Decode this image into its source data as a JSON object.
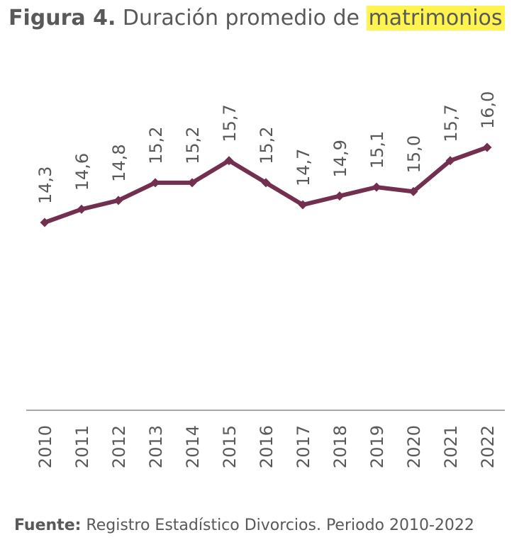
{
  "title": {
    "label": "Figura 4.",
    "text": "Duración promedio de",
    "highlight": "matrimonios"
  },
  "source": {
    "label": "Fuente:",
    "text": "Registro Estadístico Divorcios. Periodo 2010-2022"
  },
  "colors": {
    "line": "#722f4f",
    "text": "#595959",
    "axis": "#8c8c8c",
    "highlight": "#fff44f"
  },
  "chart_data": {
    "type": "line",
    "title": "Figura 4. Duración promedio de matrimonios",
    "xlabel": "",
    "ylabel": "",
    "categories": [
      "2010",
      "2011",
      "2012",
      "2013",
      "2014",
      "2015",
      "2016",
      "2017",
      "2018",
      "2019",
      "2020",
      "2021",
      "2022"
    ],
    "series": [
      {
        "values": [
          14.3,
          14.6,
          14.8,
          15.2,
          15.2,
          15.7,
          15.2,
          14.7,
          14.9,
          15.1,
          15.0,
          15.7,
          16.0
        ]
      }
    ],
    "data_labels": [
      "14,3",
      "14,6",
      "14,8",
      "15,2",
      "15,2",
      "15,7",
      "15,2",
      "14,7",
      "14,9",
      "15,1",
      "15,0",
      "15,7",
      "16,0"
    ],
    "grid": false,
    "legend": "none"
  }
}
